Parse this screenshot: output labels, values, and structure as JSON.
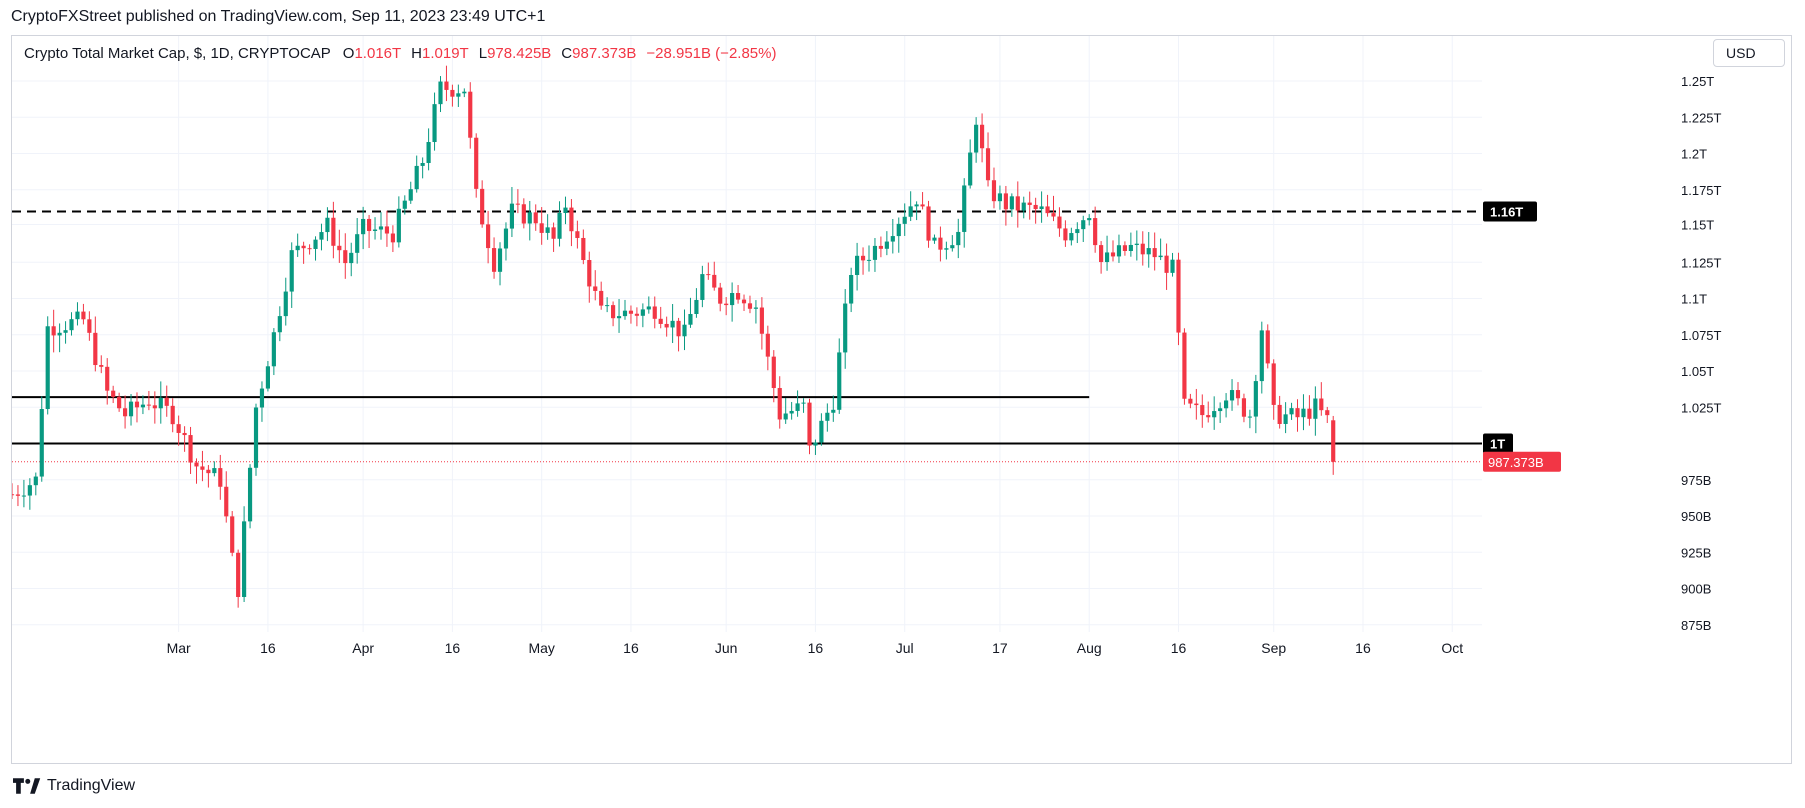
{
  "header": {
    "published_text": "CryptoFXStreet published on TradingView.com, Sep 11, 2023 23:49 UTC+1"
  },
  "legend": {
    "symbol": "Crypto Total Market Cap, $, 1D, CRYPTOCAP",
    "open_label": "O",
    "open_value": "1.016T",
    "high_label": "H",
    "high_value": "1.019T",
    "low_label": "L",
    "low_value": "978.425B",
    "close_label": "C",
    "close_value": "987.373B",
    "change_value": "−28.951B (−2.85%)"
  },
  "currency_button": {
    "label": "USD"
  },
  "footer": {
    "brand": "TradingView"
  },
  "colors": {
    "up": "#089981",
    "down": "#f23645",
    "grid": "#f0f3fa",
    "text": "#131722",
    "level_line": "#000000"
  },
  "chart_data": {
    "type": "candlestick",
    "title": "Crypto Total Market Cap, $, 1D, CRYPTOCAP",
    "unit": "USD",
    "x_range": [
      "2023-02-01",
      "2023-10-06"
    ],
    "y_range": [
      870,
      1270
    ],
    "y_tick_values": [
      875,
      900,
      925,
      950,
      975,
      1025,
      1050,
      1075,
      1100,
      1125,
      1151,
      1175,
      1200,
      1225,
      1250
    ],
    "y_tick_labels": [
      "875B",
      "900B",
      "925B",
      "950B",
      "975B",
      "1.025T",
      "1.05T",
      "1.075T",
      "1.1T",
      "1.125T",
      "1.15T",
      "1.175T",
      "1.2T",
      "1.225T",
      "1.25T"
    ],
    "x_ticks": [
      {
        "date": "2023-03-01",
        "label": "Mar"
      },
      {
        "date": "2023-03-16",
        "label": "16"
      },
      {
        "date": "2023-04-01",
        "label": "Apr"
      },
      {
        "date": "2023-04-16",
        "label": "16"
      },
      {
        "date": "2023-05-01",
        "label": "May"
      },
      {
        "date": "2023-05-16",
        "label": "16"
      },
      {
        "date": "2023-06-01",
        "label": "Jun"
      },
      {
        "date": "2023-06-16",
        "label": "16"
      },
      {
        "date": "2023-07-01",
        "label": "Jul"
      },
      {
        "date": "2023-07-17",
        "label": "17"
      },
      {
        "date": "2023-08-01",
        "label": "Aug"
      },
      {
        "date": "2023-08-16",
        "label": "16"
      },
      {
        "date": "2023-09-01",
        "label": "Sep"
      },
      {
        "date": "2023-09-16",
        "label": "16"
      },
      {
        "date": "2023-10-01",
        "label": "Oct"
      }
    ],
    "horizontal_levels": [
      {
        "value": 1160,
        "style": "dashed",
        "from": "2023-02-01",
        "to": "2023-10-06",
        "label": "1.16T"
      },
      {
        "value": 1032,
        "style": "solid",
        "from": "2023-02-01",
        "to": "2023-08-01"
      },
      {
        "value": 1000,
        "style": "solid",
        "from": "2023-02-01",
        "to": "2023-10-06",
        "label": "1T"
      }
    ],
    "last_price": {
      "value": 987.373,
      "label": "987.373B"
    },
    "grid": true,
    "waypoints": [
      [
        "2023-02-01",
        965
      ],
      [
        "2023-02-05",
        975
      ],
      [
        "2023-02-07",
        1080
      ],
      [
        "2023-02-13",
        1085
      ],
      [
        "2023-02-17",
        1035
      ],
      [
        "2023-02-20",
        1020
      ],
      [
        "2023-02-24",
        1030
      ],
      [
        "2023-02-28",
        1020
      ],
      [
        "2023-03-04",
        985
      ],
      [
        "2023-03-08",
        975
      ],
      [
        "2023-03-10",
        920
      ],
      [
        "2023-03-11",
        900
      ],
      [
        "2023-03-14",
        1025
      ],
      [
        "2023-03-17",
        1075
      ],
      [
        "2023-03-20",
        1130
      ],
      [
        "2023-03-26",
        1150
      ],
      [
        "2023-03-29",
        1125
      ],
      [
        "2023-04-01",
        1148
      ],
      [
        "2023-04-06",
        1145
      ],
      [
        "2023-04-11",
        1195
      ],
      [
        "2023-04-14",
        1245
      ],
      [
        "2023-04-18",
        1245
      ],
      [
        "2023-04-20",
        1170
      ],
      [
        "2023-04-23",
        1125
      ],
      [
        "2023-04-26",
        1160
      ],
      [
        "2023-04-30",
        1155
      ],
      [
        "2023-05-03",
        1140
      ],
      [
        "2023-05-05",
        1165
      ],
      [
        "2023-05-08",
        1125
      ],
      [
        "2023-05-11",
        1090
      ],
      [
        "2023-05-16",
        1090
      ],
      [
        "2023-05-20",
        1093
      ],
      [
        "2023-05-25",
        1075
      ],
      [
        "2023-05-28",
        1115
      ],
      [
        "2023-05-31",
        1100
      ],
      [
        "2023-06-03",
        1105
      ],
      [
        "2023-06-06",
        1095
      ],
      [
        "2023-06-10",
        1020
      ],
      [
        "2023-06-14",
        1025
      ],
      [
        "2023-06-15",
        995
      ],
      [
        "2023-06-19",
        1030
      ],
      [
        "2023-06-22",
        1120
      ],
      [
        "2023-06-26",
        1135
      ],
      [
        "2023-06-29",
        1150
      ],
      [
        "2023-07-03",
        1170
      ],
      [
        "2023-07-06",
        1135
      ],
      [
        "2023-07-10",
        1145
      ],
      [
        "2023-07-13",
        1225
      ],
      [
        "2023-07-15",
        1175
      ],
      [
        "2023-07-18",
        1165
      ],
      [
        "2023-07-24",
        1160
      ],
      [
        "2023-07-28",
        1145
      ],
      [
        "2023-08-01",
        1160
      ],
      [
        "2023-08-03",
        1125
      ],
      [
        "2023-08-08",
        1135
      ],
      [
        "2023-08-12",
        1130
      ],
      [
        "2023-08-15",
        1120
      ],
      [
        "2023-08-17",
        1025
      ],
      [
        "2023-08-20",
        1020
      ],
      [
        "2023-08-24",
        1035
      ],
      [
        "2023-08-28",
        1020
      ],
      [
        "2023-08-30",
        1080
      ],
      [
        "2023-09-01",
        1020
      ],
      [
        "2023-09-05",
        1018
      ],
      [
        "2023-09-08",
        1025
      ],
      [
        "2023-09-10",
        1016
      ],
      [
        "2023-09-11",
        987.373
      ]
    ]
  }
}
